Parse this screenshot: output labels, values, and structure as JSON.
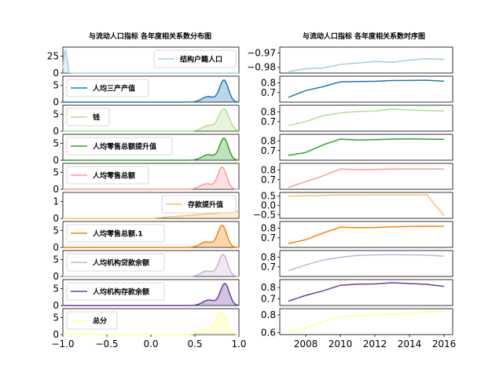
{
  "figure": {
    "left_title": "与流动人口指标 各年度相关系数分布图",
    "right_title": "与流动人口指标 各年度相关系数时序图"
  },
  "chart_data": [
    {
      "type": "area",
      "title": "与流动人口指标 各年度相关系数分布图",
      "description_role": "density distribution of yearly correlation per indicator",
      "xlim": [
        -1.0,
        1.0
      ],
      "x_ticks": [
        "−1.0",
        "−0.5",
        "0.0",
        "0.5",
        "1.0"
      ],
      "series": [
        {
          "name": "结构户籍人口",
          "color": "#a6cee3",
          "peak_x": -0.97,
          "ylim": [
            0,
            50
          ],
          "y_ticks": [
            "0",
            "25"
          ],
          "legend_pos": "right"
        },
        {
          "name": "人均三产产值",
          "color": "#1f78b4",
          "peak_x": 0.83,
          "width": 0.05,
          "ylim": [
            0,
            8
          ],
          "y_ticks": [
            "0",
            "5"
          ],
          "legend_pos": "left"
        },
        {
          "name": "钱",
          "color": "#b2df8a",
          "peak_x": 0.83,
          "width": 0.06,
          "ylim": [
            0,
            8
          ],
          "y_ticks": [
            "0",
            "5"
          ],
          "legend_pos": "left"
        },
        {
          "name": "人均零售总额提升值",
          "color": "#33a02c",
          "peak_x": 0.83,
          "width": 0.05,
          "ylim": [
            0,
            8
          ],
          "y_ticks": [
            "0",
            "5"
          ],
          "legend_pos": "left"
        },
        {
          "name": "人均零售总额",
          "color": "#fb9a99",
          "peak_x": 0.81,
          "width": 0.05,
          "ylim": [
            0,
            8
          ],
          "y_ticks": [
            "0",
            "5"
          ],
          "legend_pos": "left"
        },
        {
          "name": "存款提升值",
          "color": "#fdbf6f",
          "peak_x": 0.5,
          "width": 0.5,
          "ylim": [
            0,
            2
          ],
          "y_ticks": [
            "0",
            "1"
          ],
          "legend_pos": "right"
        },
        {
          "name": "人均零售总额.1",
          "color": "#ff7f00",
          "peak_x": 0.81,
          "width": 0.05,
          "ylim": [
            0,
            8
          ],
          "y_ticks": [
            "0",
            "5"
          ],
          "legend_pos": "left"
        },
        {
          "name": "人均机构贷款余额",
          "color": "#cab2d6",
          "peak_x": 0.82,
          "width": 0.05,
          "ylim": [
            0,
            8
          ],
          "y_ticks": [
            "0",
            "5"
          ],
          "legend_pos": "left"
        },
        {
          "name": "人均机构存款余额",
          "color": "#6a3d9a",
          "peak_x": 0.84,
          "width": 0.05,
          "ylim": [
            0,
            8
          ],
          "y_ticks": [
            "0",
            "5"
          ],
          "legend_pos": "left"
        },
        {
          "name": "总分",
          "color": "#ffff99",
          "peak_x": 0.8,
          "width": 0.06,
          "ylim": [
            0,
            8
          ],
          "y_ticks": [
            "0",
            "5"
          ],
          "legend_pos": "left"
        }
      ]
    },
    {
      "type": "line",
      "title": "与流动人口指标 各年度相关系数时序图",
      "x": [
        2007,
        2008,
        2009,
        2010,
        2011,
        2012,
        2013,
        2014,
        2015,
        2016
      ],
      "xlim": [
        2006.5,
        2016.5
      ],
      "x_ticks": [
        2008,
        2010,
        2012,
        2014,
        2016
      ],
      "series": [
        {
          "name": "结构户籍人口",
          "color": "#a6cee3",
          "ylim": [
            -0.984,
            -0.966
          ],
          "y_ticks": [
            "−0.97",
            "−0.98"
          ],
          "y_tick_vals": [
            -0.97,
            -0.98
          ],
          "values": [
            -0.983,
            -0.981,
            -0.9805,
            -0.978,
            -0.977,
            -0.976,
            -0.9765,
            -0.975,
            -0.974,
            -0.9745
          ]
        },
        {
          "name": "人均三产产值",
          "color": "#1f78b4",
          "ylim": [
            0.6,
            0.87
          ],
          "y_ticks": [
            "0.8",
            "0.7"
          ],
          "y_tick_vals": [
            0.8,
            0.7
          ],
          "values": [
            0.65,
            0.72,
            0.76,
            0.81,
            0.815,
            0.817,
            0.825,
            0.826,
            0.828,
            0.818
          ]
        },
        {
          "name": "钱",
          "color": "#b2df8a",
          "ylim": [
            0.6,
            0.87
          ],
          "y_ticks": [
            "0.8",
            "0.7"
          ],
          "y_tick_vals": [
            0.8,
            0.7
          ],
          "values": [
            0.66,
            0.7,
            0.76,
            0.79,
            0.805,
            0.81,
            0.83,
            0.82,
            0.815,
            0.81
          ]
        },
        {
          "name": "人均零售总额提升值",
          "color": "#33a02c",
          "ylim": [
            0.6,
            0.87
          ],
          "y_ticks": [
            "0.8",
            "0.7"
          ],
          "y_tick_vals": [
            0.8,
            0.7
          ],
          "values": [
            0.65,
            0.68,
            0.76,
            0.82,
            0.81,
            0.815,
            0.82,
            0.822,
            0.82,
            0.818
          ]
        },
        {
          "name": "人均零售总额",
          "color": "#fb9a99",
          "ylim": [
            0.6,
            0.87
          ],
          "y_ticks": [
            "0.8",
            "0.7"
          ],
          "y_tick_vals": [
            0.8,
            0.7
          ],
          "values": [
            0.62,
            0.68,
            0.74,
            0.81,
            0.805,
            0.808,
            0.81,
            0.812,
            0.812,
            0.81
          ]
        },
        {
          "name": "存款提升值",
          "color": "#fdbf6f",
          "ylim": [
            -0.7,
            0.7
          ],
          "y_ticks": [
            "0.5",
            "0.0",
            "−0.5"
          ],
          "y_tick_vals": [
            0.5,
            0.0,
            -0.5
          ],
          "values": [
            0.5,
            0.52,
            0.54,
            0.56,
            0.56,
            0.57,
            0.57,
            0.57,
            0.57,
            -0.55
          ]
        },
        {
          "name": "人均零售总额.1",
          "color": "#ff7f00",
          "ylim": [
            0.6,
            0.87
          ],
          "y_ticks": [
            "0.8",
            "0.7"
          ],
          "y_tick_vals": [
            0.8,
            0.7
          ],
          "values": [
            0.64,
            0.68,
            0.75,
            0.81,
            0.805,
            0.808,
            0.815,
            0.818,
            0.82,
            0.82
          ]
        },
        {
          "name": "人均机构贷款余额",
          "color": "#cab2d6",
          "ylim": [
            0.6,
            0.87
          ],
          "y_ticks": [
            "0.8",
            "0.7"
          ],
          "y_tick_vals": [
            0.8,
            0.7
          ],
          "values": [
            0.66,
            0.72,
            0.77,
            0.8,
            0.82,
            0.825,
            0.827,
            0.825,
            0.822,
            0.812
          ]
        },
        {
          "name": "人均机构存款余额",
          "color": "#6a3d9a",
          "ylim": [
            0.64,
            0.87
          ],
          "y_ticks": [
            "0.8",
            "0.7"
          ],
          "y_tick_vals": [
            0.8,
            0.7
          ],
          "values": [
            0.68,
            0.73,
            0.77,
            0.82,
            0.83,
            0.832,
            0.842,
            0.835,
            0.828,
            0.81
          ]
        },
        {
          "name": "总分",
          "color": "#ffff99",
          "ylim": [
            0.58,
            0.87
          ],
          "y_ticks": [
            "0.8",
            "0.6"
          ],
          "y_tick_vals": [
            0.8,
            0.6
          ],
          "values": [
            0.61,
            0.66,
            0.72,
            0.78,
            0.79,
            0.8,
            0.81,
            0.82,
            0.83,
            0.84
          ]
        }
      ]
    }
  ]
}
